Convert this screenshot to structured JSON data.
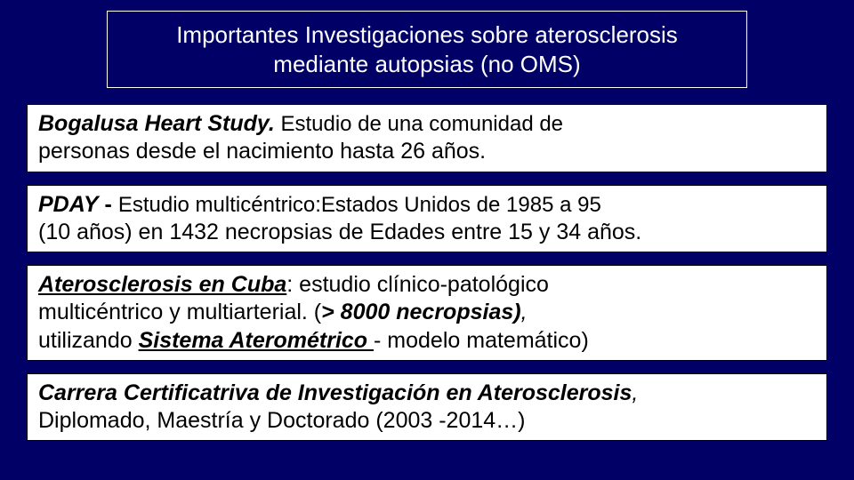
{
  "colors": {
    "background": "#000066",
    "box_bg": "#ffffff",
    "title_border": "#ffffff",
    "box_border": "#000000",
    "title_text": "#ffffff",
    "body_text": "#000000"
  },
  "typography": {
    "title_fontsize": 26,
    "body_fontsize": 25,
    "font_family": "Arial"
  },
  "title": {
    "line1": "Importantes Investigaciones sobre aterosclerosis",
    "line2": "mediante autopsias (no OMS)"
  },
  "box1": {
    "lead": "Bogalusa Heart Study.",
    "rest_line1": " Estudio de una comunidad de",
    "line2": "personas desde el nacimiento hasta 26 años."
  },
  "box2": {
    "lead": "PDAY",
    "dash": " - ",
    "rest_line1": "Estudio multicéntrico:Estados Unidos de 1985 a 95",
    "line2": "(10 años) en 1432 necropsias de Edades entre 15 y 34 años."
  },
  "box3": {
    "lead": "Aterosclerosis en Cuba",
    "colon": ": ",
    "rest_line1": "estudio clínico-patológico",
    "line2_a": "multicéntrico y multiarterial. (",
    "line2_b": "> 8000 necropsias)",
    "line2_c": ",",
    "line3_a": "utilizando ",
    "line3_b": "Sistema Aterométrico ",
    "line3_c": "- modelo matemático)"
  },
  "box4": {
    "lead": "Carrera Certificatriva de Investigación en Aterosclerosis",
    "comma": ",",
    "line2": "Diplomado, Maestría y Doctorado (2003 -2014…)"
  }
}
